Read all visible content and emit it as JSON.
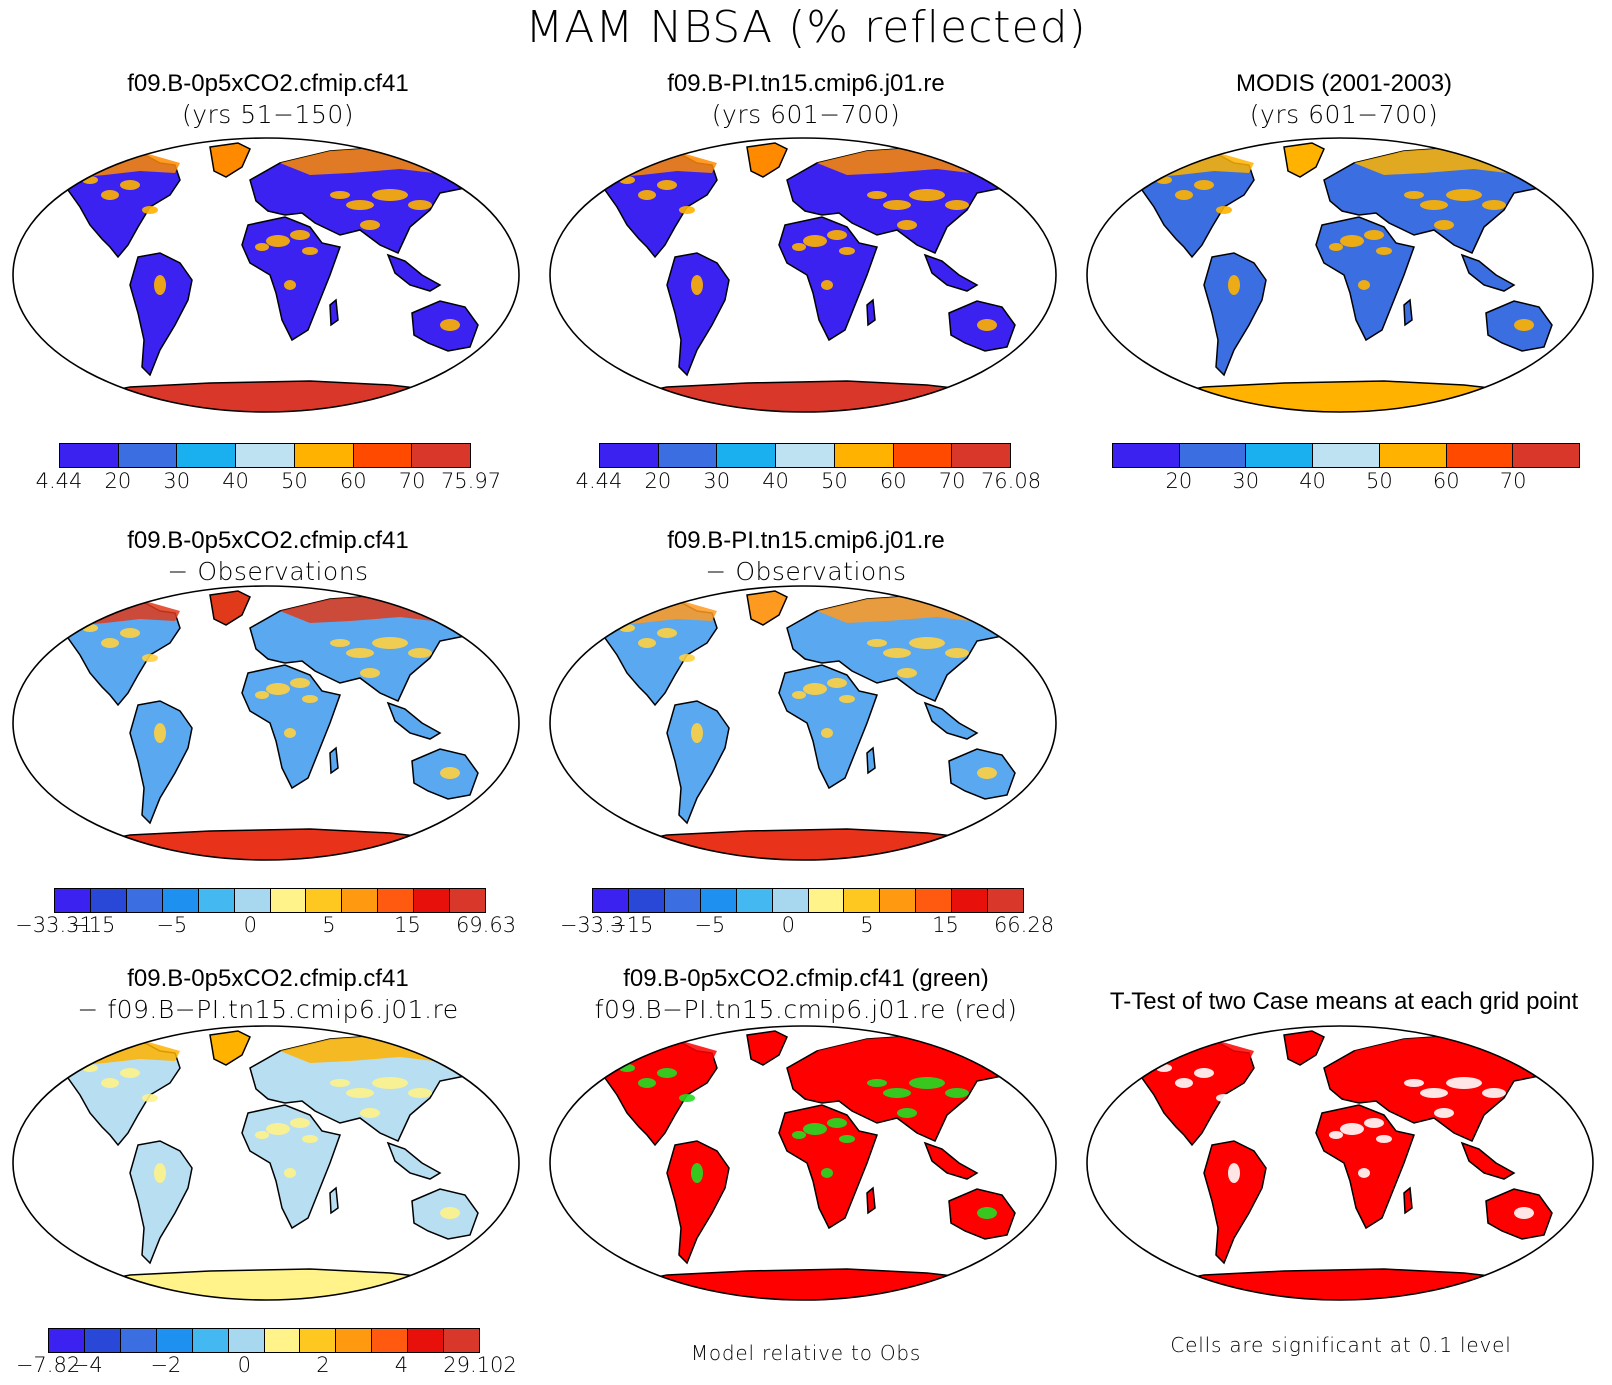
{
  "title": "MAM NBSA (% reflected)",
  "panels": [
    {
      "t1": "f09.B-0p5xCO2.cfmip.cf41",
      "t2": "(yrs 51−150)",
      "land": "#3b22f0",
      "hi": "#ff8a00",
      "ant": "#d9372a",
      "spots": "#ffb300"
    },
    {
      "t1": "f09.B-PI.tn15.cmip6.j01.re",
      "t2": "(yrs 601−700)",
      "land": "#3b22f0",
      "hi": "#ff8a00",
      "ant": "#d9372a",
      "spots": "#ffb300"
    },
    {
      "t1": "MODIS (2001-2003)",
      "t2": "(yrs 601−700)",
      "land": "#3b6ee0",
      "hi": "#ffb300",
      "ant": "#ffb300",
      "spots": "#ffb300"
    },
    {
      "t1": "f09.B-0p5xCO2.cfmip.cf41",
      "t2": "− Observations",
      "land": "#5aa8f0",
      "hi": "#e03a1a",
      "ant": "#e8321a",
      "spots": "#ffd040"
    },
    {
      "t1": "f09.B-PI.tn15.cmip6.j01.re",
      "t2": "− Observations",
      "land": "#5aa8f0",
      "hi": "#ff9a20",
      "ant": "#e8321a",
      "spots": "#ffd040"
    },
    {
      "t1": "f09.B-0p5xCO2.cfmip.cf41",
      "t2": "− f09.B−PI.tn15.cmip6.j01.re",
      "land": "#b8def2",
      "hi": "#ffb300",
      "ant": "#fff38a",
      "spots": "#fff38a"
    },
    {
      "t1": "f09.B-0p5xCO2.cfmip.cf41 (green)",
      "t2": "f09.B−PI.tn15.cmip6.j01.re (red)",
      "land": "#ff0000",
      "hi": "#ff0000",
      "ant": "#ff0000",
      "spots": "#22dd22"
    },
    {
      "t1": "T-Test of two Case means at each grid point",
      "t2": "",
      "land": "#ff0000",
      "hi": "#ff0000",
      "ant": "#ff0000",
      "spots": "#ffffff"
    }
  ],
  "colorbars": [
    {
      "colors": [
        "#3b22f0",
        "#3b6ee0",
        "#1ab0f0",
        "#bfe2f2",
        "#ffb300",
        "#ff4a00",
        "#d9372a"
      ],
      "labels": [
        "4.44",
        "20",
        "30",
        "40",
        "50",
        "60",
        "70",
        "75.97"
      ]
    },
    {
      "colors": [
        "#3b22f0",
        "#3b6ee0",
        "#1ab0f0",
        "#bfe2f2",
        "#ffb300",
        "#ff4a00",
        "#d9372a"
      ],
      "labels": [
        "4.44",
        "20",
        "30",
        "40",
        "50",
        "60",
        "70",
        "76.08"
      ]
    },
    {
      "colors": [
        "#3b22f0",
        "#3b6ee0",
        "#1ab0f0",
        "#bfe2f2",
        "#ffb300",
        "#ff4a00",
        "#d9372a"
      ],
      "labels": [
        "",
        "20",
        "30",
        "40",
        "50",
        "60",
        "70",
        ""
      ]
    },
    {
      "colors": [
        "#3b22f0",
        "#2a48d8",
        "#3b6ee0",
        "#1e90f0",
        "#44b8f0",
        "#a8d8f0",
        "#fff38a",
        "#ffc820",
        "#ff9a10",
        "#ff5a10",
        "#e8100a",
        "#d9372a"
      ],
      "labels": [
        "−33.31",
        "−15",
        "",
        "−5",
        "",
        "0",
        "",
        "5",
        "",
        "15",
        "",
        "69.63"
      ]
    },
    {
      "colors": [
        "#3b22f0",
        "#2a48d8",
        "#3b6ee0",
        "#1e90f0",
        "#44b8f0",
        "#a8d8f0",
        "#fff38a",
        "#ffc820",
        "#ff9a10",
        "#ff5a10",
        "#e8100a",
        "#d9372a"
      ],
      "labels": [
        "−33.3",
        "−15",
        "",
        "−5",
        "",
        "0",
        "",
        "5",
        "",
        "15",
        "",
        "66.28"
      ]
    },
    {
      "colors": [
        "#3b22f0",
        "#2a48d8",
        "#3b6ee0",
        "#1e90f0",
        "#44b8f0",
        "#a8d8f0",
        "#fff38a",
        "#ffc820",
        "#ff9a10",
        "#ff5a10",
        "#e8100a",
        "#d9372a"
      ],
      "labels": [
        "−7.82",
        "−4",
        "",
        "−2",
        "",
        "0",
        "",
        "2",
        "",
        "4",
        "",
        "29.102"
      ]
    }
  ],
  "footer_mid": "Model relative to Obs",
  "footer_right": "Cells are significant at 0.1 level"
}
